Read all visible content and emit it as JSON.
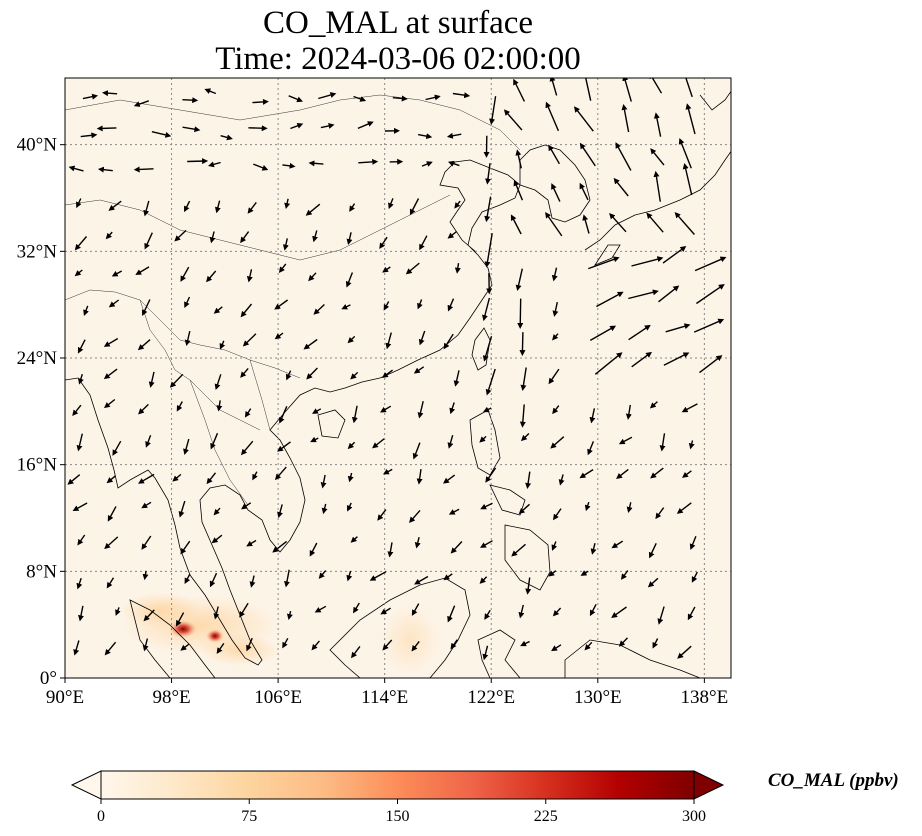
{
  "title": {
    "line1": "CO_MAL at surface",
    "line2": "Time: 2024-03-06 02:00:00"
  },
  "map": {
    "lon_range": [
      90,
      140
    ],
    "lat_range": [
      0,
      45
    ],
    "gridlines": true,
    "x_tick_labels": [
      "90°E",
      "98°E",
      "106°E",
      "114°E",
      "122°E",
      "130°E",
      "138°E"
    ],
    "y_tick_labels": [
      "0°",
      "8°N",
      "16°N",
      "24°N",
      "32°N",
      "40°N"
    ],
    "background_color": "#fdf4e8",
    "coastline_color": "#000000",
    "hotspots_region": "northern Sumatra / Malay Peninsula",
    "wind_vectors": true
  },
  "colorbar": {
    "label": "CO_MAL (ppbv)",
    "ticks": [
      "0",
      "75",
      "150",
      "225",
      "300"
    ],
    "min": 0,
    "max": 300,
    "colormap": "OrRd",
    "colors": [
      "#fff7ec",
      "#fee8c8",
      "#fdd49e",
      "#fdbb84",
      "#fc8d59",
      "#ef6548",
      "#d7301f",
      "#b30000",
      "#7f0000"
    ]
  }
}
